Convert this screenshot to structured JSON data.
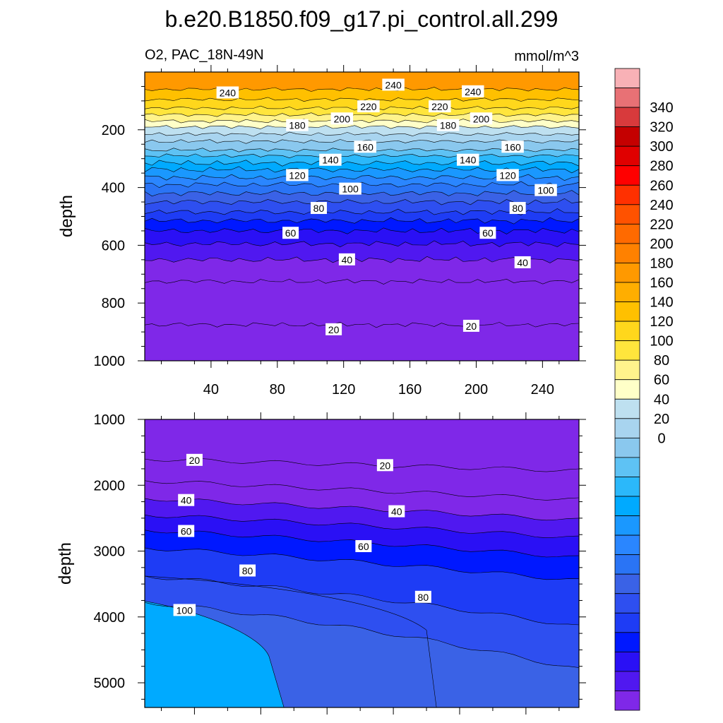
{
  "title": "b.e20.B1850.f09_g17.pi_control.all.299",
  "subtitle_left": "O2, PAC_18N-49N",
  "subtitle_right": "mmol/m^3",
  "chart_data": [
    {
      "type": "heatmap",
      "panel": "upper",
      "ylabel": "depth",
      "xlabel": "",
      "x_ticks": [
        "40",
        "80",
        "120",
        "160",
        "200",
        "240"
      ],
      "y_ticks": [
        "200",
        "400",
        "600",
        "800",
        "1000"
      ],
      "xlim": [
        0,
        262
      ],
      "ylim": [
        1000,
        0
      ],
      "contour_depths": [
        {
          "level": 240,
          "depth": 60
        },
        {
          "level": 230,
          "depth": 95
        },
        {
          "level": 220,
          "depth": 125
        },
        {
          "level": 210,
          "depth": 148
        },
        {
          "level": 200,
          "depth": 170
        },
        {
          "level": 190,
          "depth": 190
        },
        {
          "level": 180,
          "depth": 215
        },
        {
          "level": 170,
          "depth": 240
        },
        {
          "level": 160,
          "depth": 270
        },
        {
          "level": 150,
          "depth": 290
        },
        {
          "level": 140,
          "depth": 315
        },
        {
          "level": 130,
          "depth": 338
        },
        {
          "level": 120,
          "depth": 365
        },
        {
          "level": 110,
          "depth": 390
        },
        {
          "level": 100,
          "depth": 420
        },
        {
          "level": 90,
          "depth": 450
        },
        {
          "level": 80,
          "depth": 485
        },
        {
          "level": 70,
          "depth": 515
        },
        {
          "level": 60,
          "depth": 550
        },
        {
          "level": 50,
          "depth": 595
        },
        {
          "level": 40,
          "depth": 650
        },
        {
          "level": 30,
          "depth": 725
        },
        {
          "level": 20,
          "depth": 875
        }
      ],
      "contour_labels": [
        {
          "text": "240",
          "x": 50,
          "y": 72
        },
        {
          "text": "240",
          "x": 150,
          "y": 45
        },
        {
          "text": "240",
          "x": 198,
          "y": 68
        },
        {
          "text": "220",
          "x": 135,
          "y": 120
        },
        {
          "text": "220",
          "x": 178,
          "y": 120
        },
        {
          "text": "200",
          "x": 119,
          "y": 162
        },
        {
          "text": "200",
          "x": 203,
          "y": 162
        },
        {
          "text": "180",
          "x": 92,
          "y": 185
        },
        {
          "text": "180",
          "x": 183,
          "y": 185
        },
        {
          "text": "160",
          "x": 133,
          "y": 260
        },
        {
          "text": "160",
          "x": 222,
          "y": 260
        },
        {
          "text": "140",
          "x": 112,
          "y": 305
        },
        {
          "text": "140",
          "x": 195,
          "y": 305
        },
        {
          "text": "120",
          "x": 92,
          "y": 358
        },
        {
          "text": "120",
          "x": 219,
          "y": 358
        },
        {
          "text": "100",
          "x": 124,
          "y": 405
        },
        {
          "text": "100",
          "x": 242,
          "y": 410
        },
        {
          "text": "80",
          "x": 105,
          "y": 472
        },
        {
          "text": "80",
          "x": 225,
          "y": 472
        },
        {
          "text": "60",
          "x": 88,
          "y": 558
        },
        {
          "text": "60",
          "x": 207,
          "y": 558
        },
        {
          "text": "40",
          "x": 122,
          "y": 650
        },
        {
          "text": "40",
          "x": 228,
          "y": 660
        },
        {
          "text": "20",
          "x": 114,
          "y": 892
        },
        {
          "text": "20",
          "x": 197,
          "y": 880
        }
      ]
    },
    {
      "type": "heatmap",
      "panel": "lower",
      "ylabel": "depth",
      "xlabel": "",
      "y_ticks": [
        "1000",
        "2000",
        "3000",
        "4000",
        "5000"
      ],
      "xlim": [
        0,
        262
      ],
      "ylim": [
        5375,
        1000
      ],
      "contour_labels": [
        {
          "text": "20",
          "x": 30,
          "y": 1620
        },
        {
          "text": "20",
          "x": 145,
          "y": 1700
        },
        {
          "text": "40",
          "x": 25,
          "y": 2230
        },
        {
          "text": "40",
          "x": 152,
          "y": 2400
        },
        {
          "text": "60",
          "x": 25,
          "y": 2700
        },
        {
          "text": "60",
          "x": 132,
          "y": 2930
        },
        {
          "text": "80",
          "x": 62,
          "y": 3300
        },
        {
          "text": "80",
          "x": 168,
          "y": 3700
        },
        {
          "text": "100",
          "x": 24,
          "y": 3900
        }
      ]
    }
  ],
  "colorbar": {
    "labels": [
      "340",
      "320",
      "300",
      "280",
      "260",
      "240",
      "220",
      "200",
      "180",
      "160",
      "140",
      "120",
      "100",
      "80",
      "60",
      "40",
      "20",
      "0"
    ],
    "colors": [
      "#f8b1b6",
      "#e87175",
      "#d83a3c",
      "#c40000",
      "#e00000",
      "#ff0000",
      "#ff3000",
      "#ff5200",
      "#ff6a00",
      "#ff8100",
      "#ff9900",
      "#ffae00",
      "#ffc000",
      "#ffd71c",
      "#ffe53c",
      "#fff38c",
      "#ffffc8",
      "#bee0f0",
      "#a8d4ef",
      "#8ac8ee",
      "#5ec2f4",
      "#2bb8fa",
      "#00aaff",
      "#1a98ff",
      "#2a86ff",
      "#2a74f5",
      "#3a62e6",
      "#2e4ff0",
      "#1e3cf5",
      "#0018ff",
      "#2a10f5",
      "#5018f0",
      "#7f28e8"
    ]
  }
}
